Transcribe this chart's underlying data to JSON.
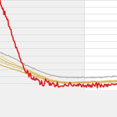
{
  "background_color": "#f0f0f0",
  "right_panel_color": "#ffffff",
  "bottom_bar_color": "#1a6fa0",
  "grid_color": "#d8d8d8",
  "n_points": 150,
  "line_color_red": "#dd2020",
  "line_color_gray": "#b0b0b0",
  "line_color_gold1": "#ddc070",
  "line_color_gold2": "#c8a840",
  "line_color_gold3": "#e8cc88",
  "line_color_gold4": "#d0b050",
  "panel_split": 0.72,
  "bottom_bar_height": 0.23
}
